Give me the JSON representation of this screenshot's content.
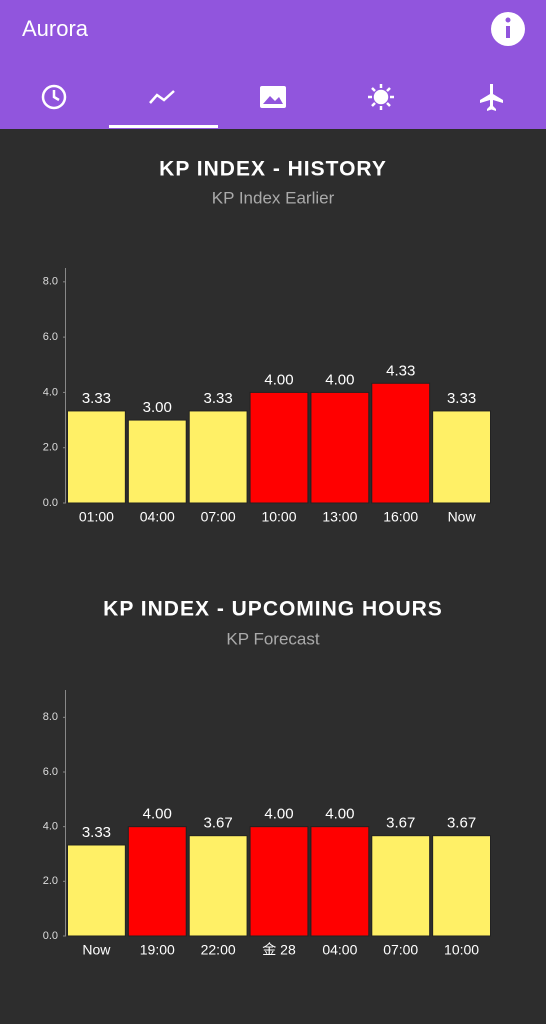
{
  "app_bar": {
    "title": "Aurora"
  },
  "chart_data": [
    {
      "type": "bar",
      "title": "KP INDEX - HISTORY",
      "subtitle": "KP Index Earlier",
      "categories": [
        "01:00",
        "04:00",
        "07:00",
        "10:00",
        "13:00",
        "16:00",
        "Now"
      ],
      "values": [
        3.33,
        3.0,
        3.33,
        4.0,
        4.0,
        4.33,
        3.33
      ],
      "value_labels": [
        "3.33",
        "3.00",
        "3.33",
        "4.00",
        "4.00",
        "4.33",
        "3.33"
      ],
      "colors": [
        "#fff066",
        "#fff066",
        "#fff066",
        "#ff0000",
        "#ff0000",
        "#ff0000",
        "#fff066"
      ],
      "ylim": [
        0,
        8.5
      ],
      "yticks": [
        {
          "value": 0,
          "label": "0.0"
        },
        {
          "value": 2,
          "label": "2.0"
        },
        {
          "value": 4,
          "label": "4.0"
        },
        {
          "value": 6,
          "label": "6.0"
        },
        {
          "value": 8,
          "label": "8.0"
        }
      ],
      "grid": false
    },
    {
      "type": "bar",
      "title": "KP INDEX - UPCOMING HOURS",
      "subtitle": "KP Forecast",
      "categories": [
        "Now",
        "19:00",
        "22:00",
        "金 28",
        "04:00",
        "07:00",
        "10:00"
      ],
      "values": [
        3.33,
        4.0,
        3.67,
        4.0,
        4.0,
        3.67,
        3.67
      ],
      "value_labels": [
        "3.33",
        "4.00",
        "3.67",
        "4.00",
        "4.00",
        "3.67",
        "3.67"
      ],
      "colors": [
        "#fff066",
        "#ff0000",
        "#fff066",
        "#ff0000",
        "#ff0000",
        "#fff066",
        "#fff066"
      ],
      "ylim": [
        0,
        9
      ],
      "yticks": [
        {
          "value": 0,
          "label": "0.0"
        },
        {
          "value": 2,
          "label": "2.0"
        },
        {
          "value": 4,
          "label": "4.0"
        },
        {
          "value": 6,
          "label": "6.0"
        },
        {
          "value": 8,
          "label": "8.0"
        }
      ],
      "grid": false
    }
  ]
}
